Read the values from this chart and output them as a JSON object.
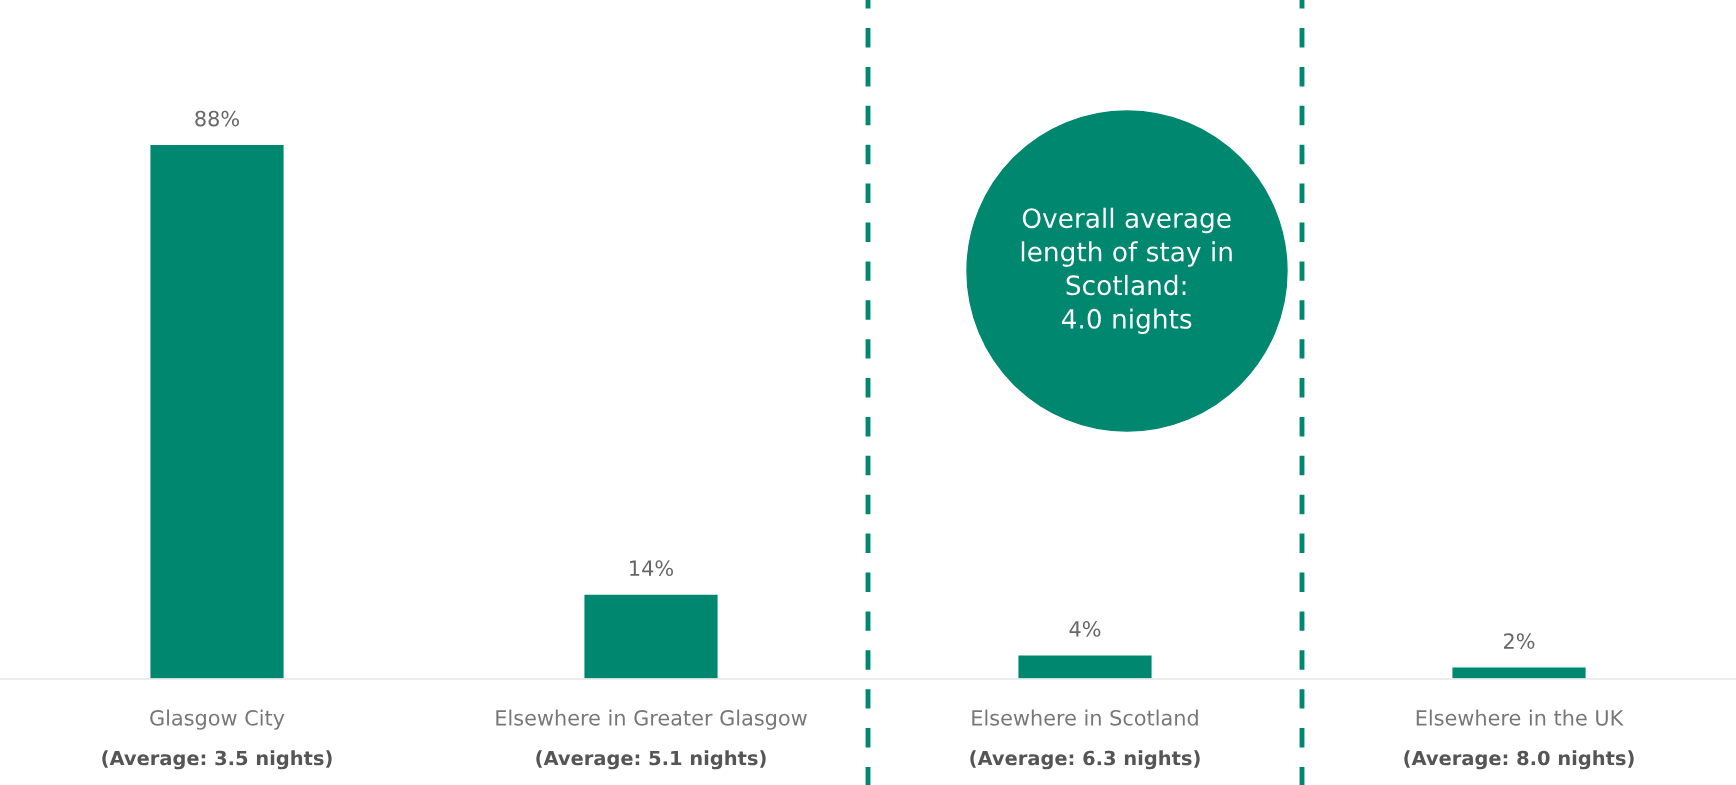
{
  "chart_data": {
    "type": "bar",
    "categories": [
      "Glasgow City",
      "Elsewhere in Greater Glasgow",
      "Elsewhere in Scotland",
      "Elsewhere in the UK"
    ],
    "values": [
      88,
      14,
      4,
      2
    ],
    "color": "#00876f",
    "data_labels": true,
    "value_labels": [
      "88%",
      "14%",
      "4%",
      "2%"
    ],
    "annotations": [
      "(Average: 3.5 nights)",
      "(Average: 5.1 nights)",
      "(Average: 6.3 nights)",
      "(Average: 8.0 nights)",
      "Overall average\nlength of stay in\nScotland:\n4.0 nights"
    ],
    "grid": false,
    "legend": false
  }
}
